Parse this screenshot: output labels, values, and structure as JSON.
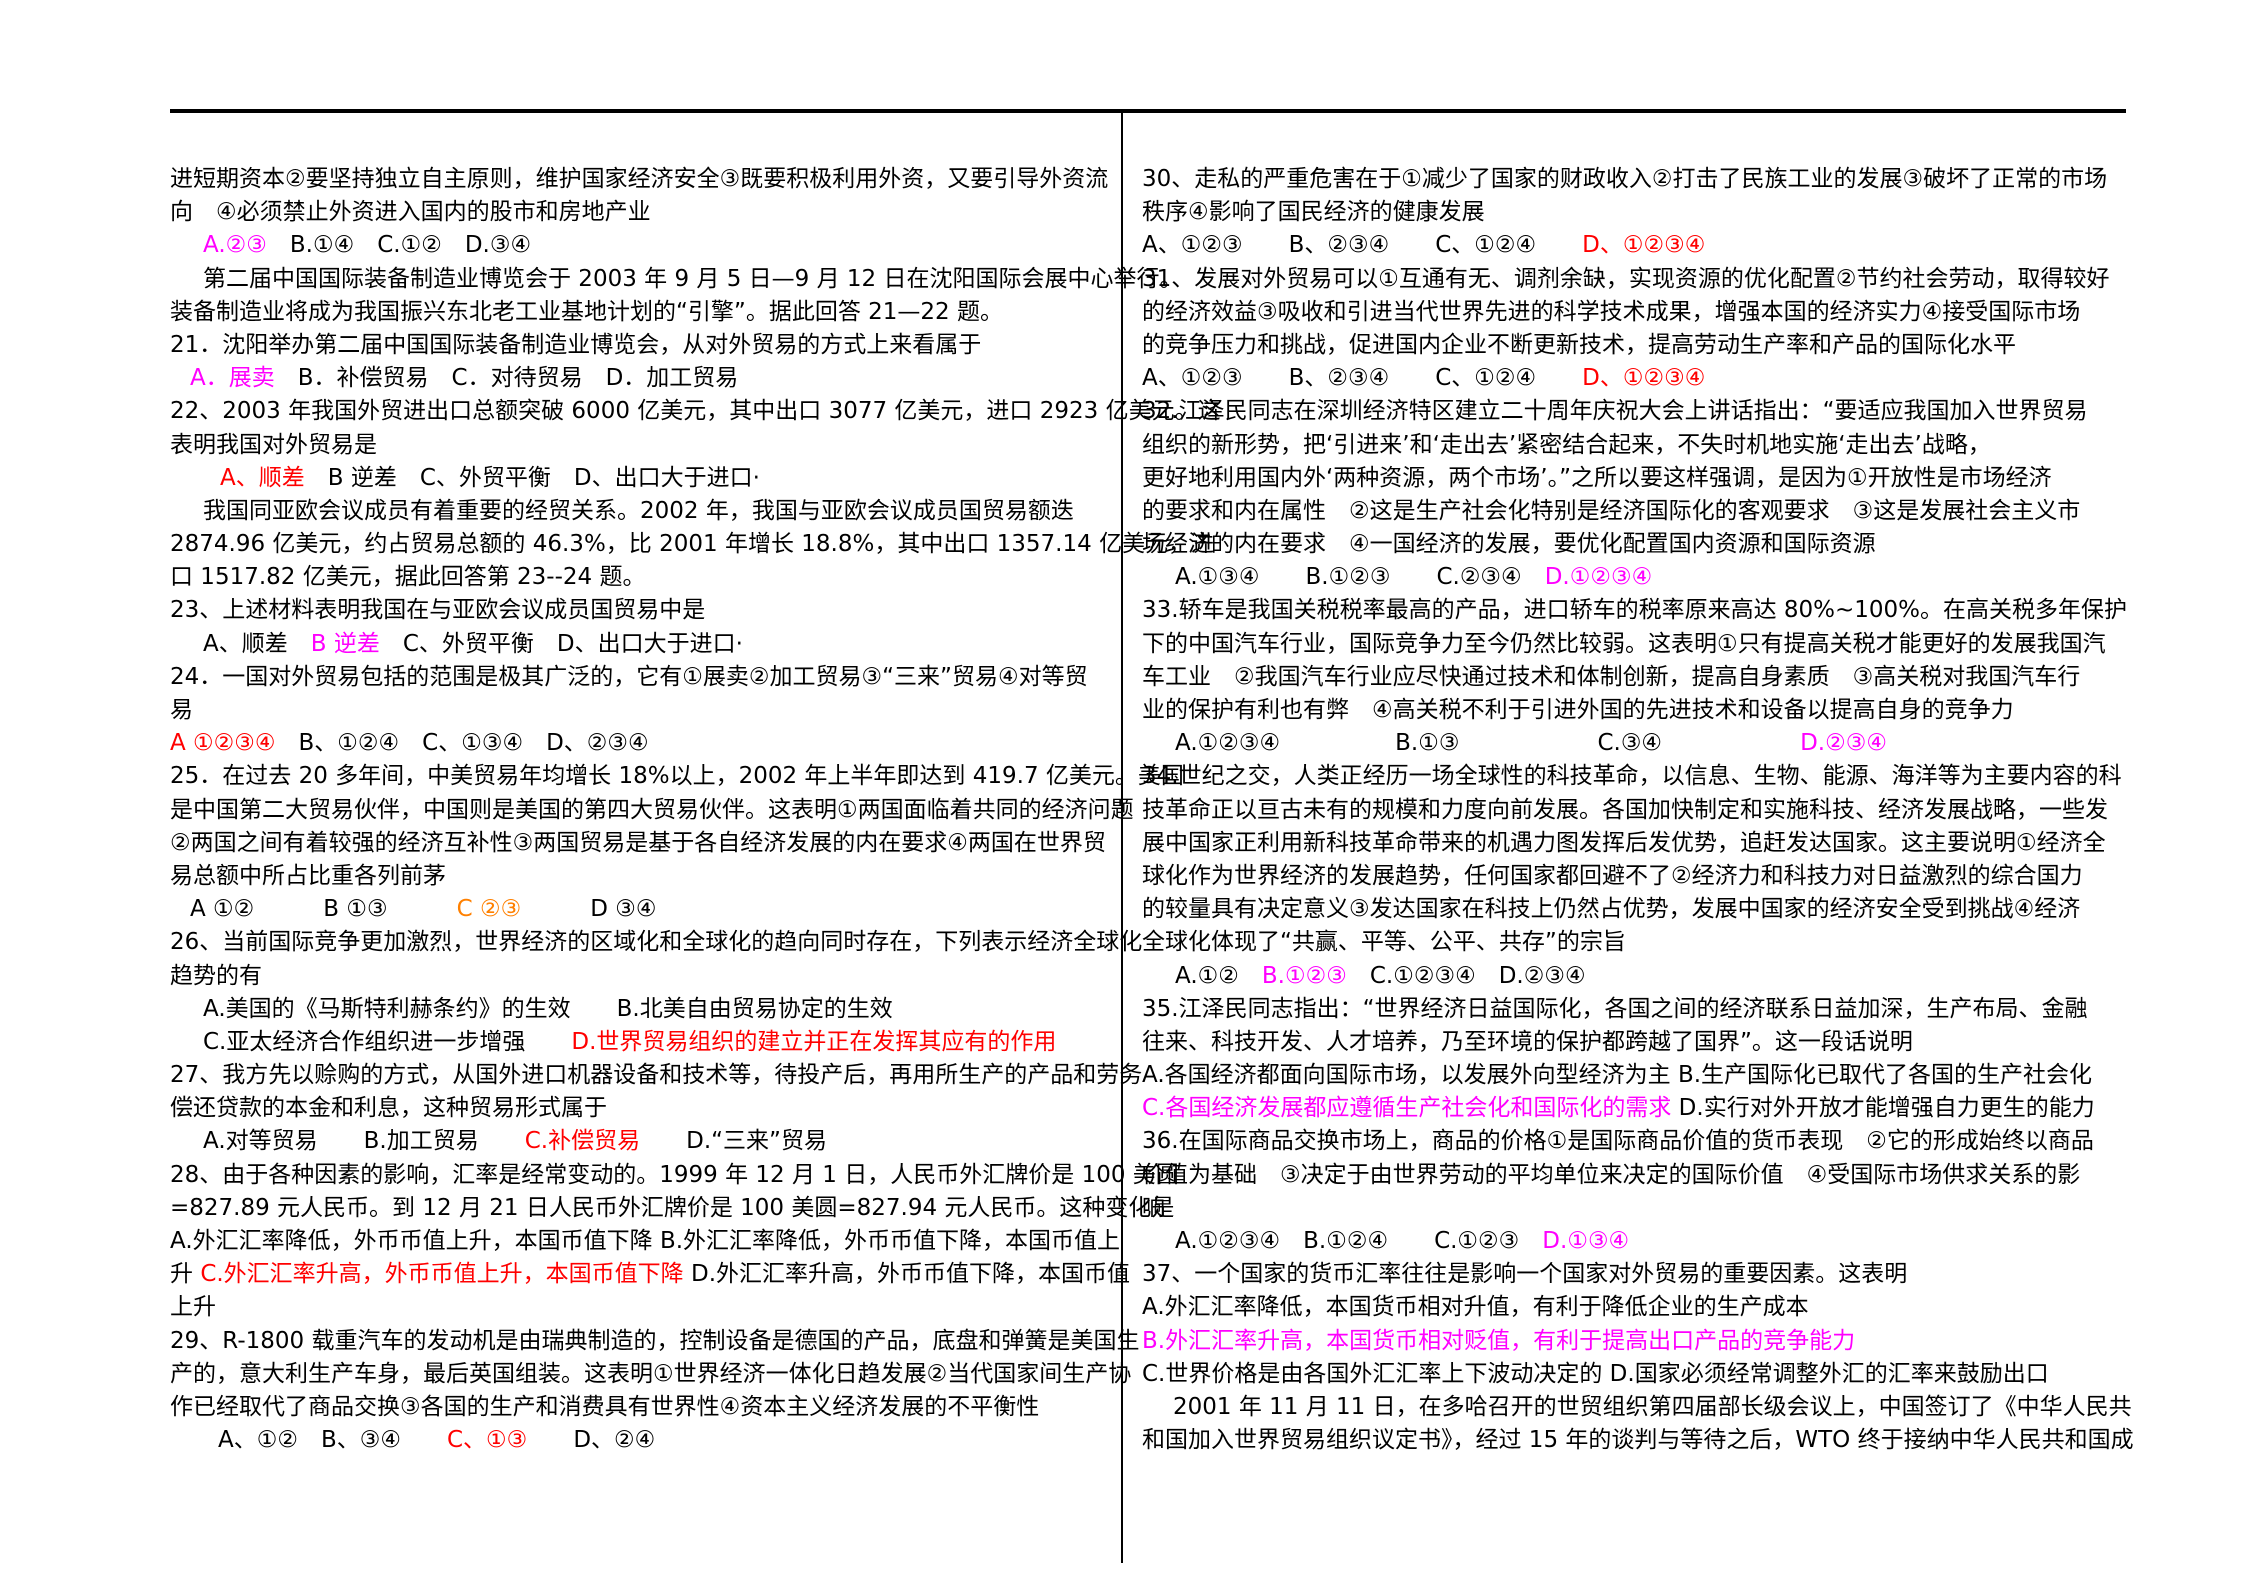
{
  "document": {
    "kind": "exam-multiple-choice-page",
    "language": "zh-CN",
    "colors": {
      "black": "#000000",
      "magenta": "#ff00ff",
      "red": "#ff0000",
      "orange": "#ff8000",
      "rule": "#000000"
    },
    "columns": [
      {
        "name": "left",
        "lines": [
          {
            "indent": 0,
            "text": "进短期资本②要坚持独立自主原则，维护国家经济安全③既要积极利用外资，又要引导外资流"
          },
          {
            "indent": 0,
            "text": "向　④必须禁止外资进入国内的股市和房地产业"
          },
          {
            "indent": 33,
            "segments": [
              {
                "text": "A.②③",
                "color": "magenta"
              },
              {
                "text": "　B.①④　C.①②　D.③④",
                "color": "black"
              }
            ]
          },
          {
            "indent": 33,
            "text": "第二届中国国际装备制造业博览会于 2003 年 9 月 5 日—9 月 12 日在沈阳国际会展中心举行。"
          },
          {
            "indent": 0,
            "text": "装备制造业将成为我国振兴东北老工业基地计划的“引擎”。据此回答 21—22 题。"
          },
          {
            "indent": 0,
            "text": "21．沈阳举办第二届中国国际装备制造业博览会，从对外贸易的方式上来看属于"
          },
          {
            "indent": 20,
            "segments": [
              {
                "text": "A．展卖",
                "color": "magenta"
              },
              {
                "text": "　B．补偿贸易　C．对待贸易　D．加工贸易",
                "color": "black"
              }
            ]
          },
          {
            "indent": 0,
            "text": "22、2003 年我国外贸进出口总额突破 6000 亿美元，其中出口 3077 亿美元，进口 2923 亿美元。这"
          },
          {
            "indent": 0,
            "text": "表明我国对外贸易是"
          },
          {
            "indent": 50,
            "segments": [
              {
                "text": "A、顺差",
                "color": "red"
              },
              {
                "text": "　B 逆差　C、外贸平衡　D、出口大于进口·",
                "color": "black"
              }
            ]
          },
          {
            "indent": 33,
            "text": "我国同亚欧会议成员有着重要的经贸关系。2002 年，我国与亚欧会议成员国贸易额迭"
          },
          {
            "indent": 0,
            "text": "2874.96 亿美元，约占贸易总额的 46.3%，比 2001 年增长 18.8%，其中出口 1357.14 亿美元，进"
          },
          {
            "indent": 0,
            "text": "口 1517.82 亿美元，据此回答第 23--24 题。"
          },
          {
            "indent": 0,
            "text": "23、上述材料表明我国在与亚欧会议成员国贸易中是"
          },
          {
            "indent": 33,
            "segments": [
              {
                "text": "A、顺差　",
                "color": "black"
              },
              {
                "text": "B 逆差",
                "color": "magenta"
              },
              {
                "text": "　C、外贸平衡　D、出口大于进口·",
                "color": "black"
              }
            ]
          },
          {
            "indent": 0,
            "text": "24．一国对外贸易包括的范围是极其广泛的，它有①展卖②加工贸易③“三来”贸易④对等贸"
          },
          {
            "indent": 0,
            "text": "易"
          },
          {
            "indent": 0,
            "segments": [
              {
                "text": "A ①②③④",
                "color": "red"
              },
              {
                "text": "　B、①②④　C、①③④　D、②③④",
                "color": "black"
              }
            ]
          },
          {
            "indent": 0,
            "text": "25．在过去 20 多年间，中美贸易年均增长 18%以上，2002 年上半年即达到 419.7 亿美元。美国"
          },
          {
            "indent": 0,
            "text": "是中国第二大贸易伙伴，中国则是美国的第四大贸易伙伴。这表明①两国面临着共同的经济问题"
          },
          {
            "indent": 0,
            "text": "②两国之间有着较强的经济互补性③两国贸易是基于各自经济发展的内在要求④两国在世界贸"
          },
          {
            "indent": 0,
            "text": "易总额中所占比重各列前茅"
          },
          {
            "indent": 20,
            "segments": [
              {
                "text": "A ①②　　　B ①③　　　",
                "color": "black"
              },
              {
                "text": "C ②③",
                "color": "orange"
              },
              {
                "text": "　　　D ③④",
                "color": "black"
              }
            ]
          },
          {
            "indent": 0,
            "text": "26、当前国际竞争更加激烈，世界经济的区域化和全球化的趋向同时存在，下列表示经济全球化"
          },
          {
            "indent": 0,
            "text": "趋势的有"
          },
          {
            "indent": 33,
            "text": "A.美国的《马斯特利赫条约》的生效　　B.北美自由贸易协定的生效"
          },
          {
            "indent": 33,
            "segments": [
              {
                "text": "C.亚太经济合作组织进一步增强　　",
                "color": "black"
              },
              {
                "text": "D.世界贸易组织的建立并正在发挥其应有的作用",
                "color": "red"
              }
            ]
          },
          {
            "indent": 0,
            "text": "27、我方先以赊购的方式，从国外进口机器设备和技术等，待投产后，再用所生产的产品和劳务"
          },
          {
            "indent": 0,
            "text": "偿还贷款的本金和利息，这种贸易形式属于"
          },
          {
            "indent": 33,
            "segments": [
              {
                "text": "A.对等贸易　　B.加工贸易　　",
                "color": "black"
              },
              {
                "text": "C.补偿贸易",
                "color": "red"
              },
              {
                "text": "　　D.“三来”贸易",
                "color": "black"
              }
            ]
          },
          {
            "indent": 0,
            "text": "28、由于各种因素的影响，汇率是经常变动的。1999 年 12 月 1 日，人民币外汇牌价是 100 美圆"
          },
          {
            "indent": 0,
            "text": "=827.89 元人民币。到 12 月 21 日人民币外汇牌价是 100 美圆=827.94 元人民币。这种变化是"
          },
          {
            "indent": 0,
            "text": "A.外汇汇率降低，外币币值上升，本国币值下降 B.外汇汇率降低，外币币值下降，本国币值上"
          },
          {
            "indent": 0,
            "segments": [
              {
                "text": "升 ",
                "color": "black"
              },
              {
                "text": "C.外汇汇率升高，外币币值上升，本国币值下降",
                "color": "red"
              },
              {
                "text": " D.外汇汇率升高，外币币值下降，本国币值",
                "color": "black"
              }
            ]
          },
          {
            "indent": 0,
            "text": "上升"
          },
          {
            "indent": 0,
            "text": "29、R-1800 载重汽车的发动机是由瑞典制造的，控制设备是德国的产品，底盘和弹簧是美国生"
          },
          {
            "indent": 0,
            "text": "产的，意大利生产车身，最后英国组装。这表明①世界经济一体化日趋发展②当代国家间生产协"
          },
          {
            "indent": 0,
            "text": "作已经取代了商品交换③各国的生产和消费具有世界性④资本主义经济发展的不平衡性"
          },
          {
            "indent": 48,
            "segments": [
              {
                "text": "A、①②　B、③④　　",
                "color": "black"
              },
              {
                "text": "C、①③",
                "color": "red"
              },
              {
                "text": "　　D、②④",
                "color": "black"
              }
            ]
          }
        ]
      },
      {
        "name": "right",
        "lines": [
          {
            "indent": 0,
            "text": "30、走私的严重危害在于①减少了国家的财政收入②打击了民族工业的发展③破坏了正常的市场"
          },
          {
            "indent": 0,
            "text": "秩序④影响了国民经济的健康发展"
          },
          {
            "indent": 0,
            "segments": [
              {
                "text": "A、①②③　　B、②③④　　C、①②④　　",
                "color": "black"
              },
              {
                "text": "D、①②③④",
                "color": "red"
              }
            ]
          },
          {
            "indent": 0,
            "text": "31、发展对外贸易可以①互通有无、调剂余缺，实现资源的优化配置②节约社会劳动，取得较好"
          },
          {
            "indent": 0,
            "text": "的经济效益③吸收和引进当代世界先进的科学技术成果，增强本国的经济实力④接受国际市场"
          },
          {
            "indent": 0,
            "text": "的竞争压力和挑战，促进国内企业不断更新技术，提高劳动生产率和产品的国际化水平"
          },
          {
            "indent": 0,
            "segments": [
              {
                "text": "A、①②③　　B、②③④　　C、①②④　　",
                "color": "black"
              },
              {
                "text": "D、①②③④",
                "color": "red"
              }
            ]
          },
          {
            "indent": 0,
            "text": "32.江泽民同志在深圳经济特区建立二十周年庆祝大会上讲话指出：“要适应我国加入世界贸易"
          },
          {
            "indent": 0,
            "text": "组织的新形势，把‘引进来’和‘走出去’紧密结合起来，不失时机地实施‘走出去’战略，"
          },
          {
            "indent": 0,
            "text": "更好地利用国内外‘两种资源，两个市场’。”之所以要这样强调，是因为①开放性是市场经济"
          },
          {
            "indent": 0,
            "text": "的要求和内在属性　②这是生产社会化特别是经济国际化的客观要求　③这是发展社会主义市"
          },
          {
            "indent": 0,
            "text": "场经济的内在要求　④一国经济的发展，要优化配置国内资源和国际资源"
          },
          {
            "indent": 33,
            "segments": [
              {
                "text": "A.①③④　　B.①②③　　C.②③④　",
                "color": "black"
              },
              {
                "text": "D.①②③④",
                "color": "magenta"
              }
            ]
          },
          {
            "indent": 0,
            "text": "33.轿车是我国关税税率最高的产品，进口轿车的税率原来高达 80%~100%。在高关税多年保护"
          },
          {
            "indent": 0,
            "text": "下的中国汽车行业，国际竞争力至今仍然比较弱。这表明①只有提高关税才能更好的发展我国汽"
          },
          {
            "indent": 0,
            "text": "车工业　②我国汽车行业应尽快通过技术和体制创新，提高自身素质　③高关税对我国汽车行"
          },
          {
            "indent": 0,
            "text": "业的保护有利也有弊　④高关税不利于引进外国的先进技术和设备以提高自身的竞争力"
          },
          {
            "indent": 33,
            "segments": [
              {
                "text": "A.①②③④　　　　　B.①③　　　　　　C.③④　　　　　　",
                "color": "black"
              },
              {
                "text": "D.②③④",
                "color": "magenta"
              }
            ]
          },
          {
            "indent": 0,
            "text": "34.世纪之交，人类正经历一场全球性的科技革命，以信息、生物、能源、海洋等为主要内容的科"
          },
          {
            "indent": 0,
            "text": "技革命正以亘古未有的规模和力度向前发展。各国加快制定和实施科技、经济发展战略，一些发"
          },
          {
            "indent": 0,
            "text": "展中国家正利用新科技革命带来的机遇力图发挥后发优势，追赶发达国家。这主要说明①经济全"
          },
          {
            "indent": 0,
            "text": "球化作为世界经济的发展趋势，任何国家都回避不了②经济力和科技力对日益激烈的综合国力"
          },
          {
            "indent": 0,
            "text": "的较量具有决定意义③发达国家在科技上仍然占优势，发展中国家的经济安全受到挑战④经济"
          },
          {
            "indent": 0,
            "text": "全球化体现了“共赢、平等、公平、共存”的宗旨"
          },
          {
            "indent": 33,
            "segments": [
              {
                "text": "A.①②　",
                "color": "black"
              },
              {
                "text": "B.①②③",
                "color": "magenta"
              },
              {
                "text": "　C.①②③④　D.②③④",
                "color": "black"
              }
            ]
          },
          {
            "indent": 0,
            "text": "35.江泽民同志指出：“世界经济日益国际化，各国之间的经济联系日益加深，生产布局、金融"
          },
          {
            "indent": 0,
            "text": "往来、科技开发、人才培养，乃至环境的保护都跨越了国界”。这一段话说明"
          },
          {
            "indent": 0,
            "text": "A.各国经济都面向国际市场，以发展外向型经济为主 B.生产国际化已取代了各国的生产社会化"
          },
          {
            "indent": 0,
            "segments": [
              {
                "text": "C.各国经济发展都应遵循生产社会化和国际化的需求",
                "color": "magenta"
              },
              {
                "text": " D.实行对外开放才能增强自力更生的能力",
                "color": "black"
              }
            ]
          },
          {
            "indent": 0,
            "text": "36.在国际商品交换市场上，商品的价格①是国际商品价值的货币表现　②它的形成始终以商品"
          },
          {
            "indent": 0,
            "text": "价值为基础　③决定于由世界劳动的平均单位来决定的国际价值　④受国际市场供求关系的影"
          },
          {
            "indent": 0,
            "text": "响"
          },
          {
            "indent": 33,
            "segments": [
              {
                "text": "A.①②③④　B.①②④　　C.①②③　",
                "color": "black"
              },
              {
                "text": "D.①③④",
                "color": "magenta"
              }
            ]
          },
          {
            "indent": 0,
            "text": "37、一个国家的货币汇率往往是影响一个国家对外贸易的重要因素。这表明"
          },
          {
            "indent": 0,
            "text": "A.外汇汇率降低，本国货币相对升值，有利于降低企业的生产成本"
          },
          {
            "indent": 0,
            "segments": [
              {
                "text": "B.外汇汇率升高，本国货币相对贬值，有利于提高出口产品的竞争能力",
                "color": "magenta"
              }
            ]
          },
          {
            "indent": 0,
            "text": "C.世界价格是由各国外汇汇率上下波动决定的 D.国家必须经常调整外汇的汇率来鼓励出口"
          },
          {
            "indent": 31,
            "text": "2001 年 11 月 11 日，在多哈召开的世贸组织第四届部长级会议上，中国签订了《中华人民共"
          },
          {
            "indent": 0,
            "text": "和国加入世界贸易组织议定书》，经过 15 年的谈判与等待之后，WTO 终于接纳中华人民共和国成"
          }
        ]
      }
    ]
  }
}
